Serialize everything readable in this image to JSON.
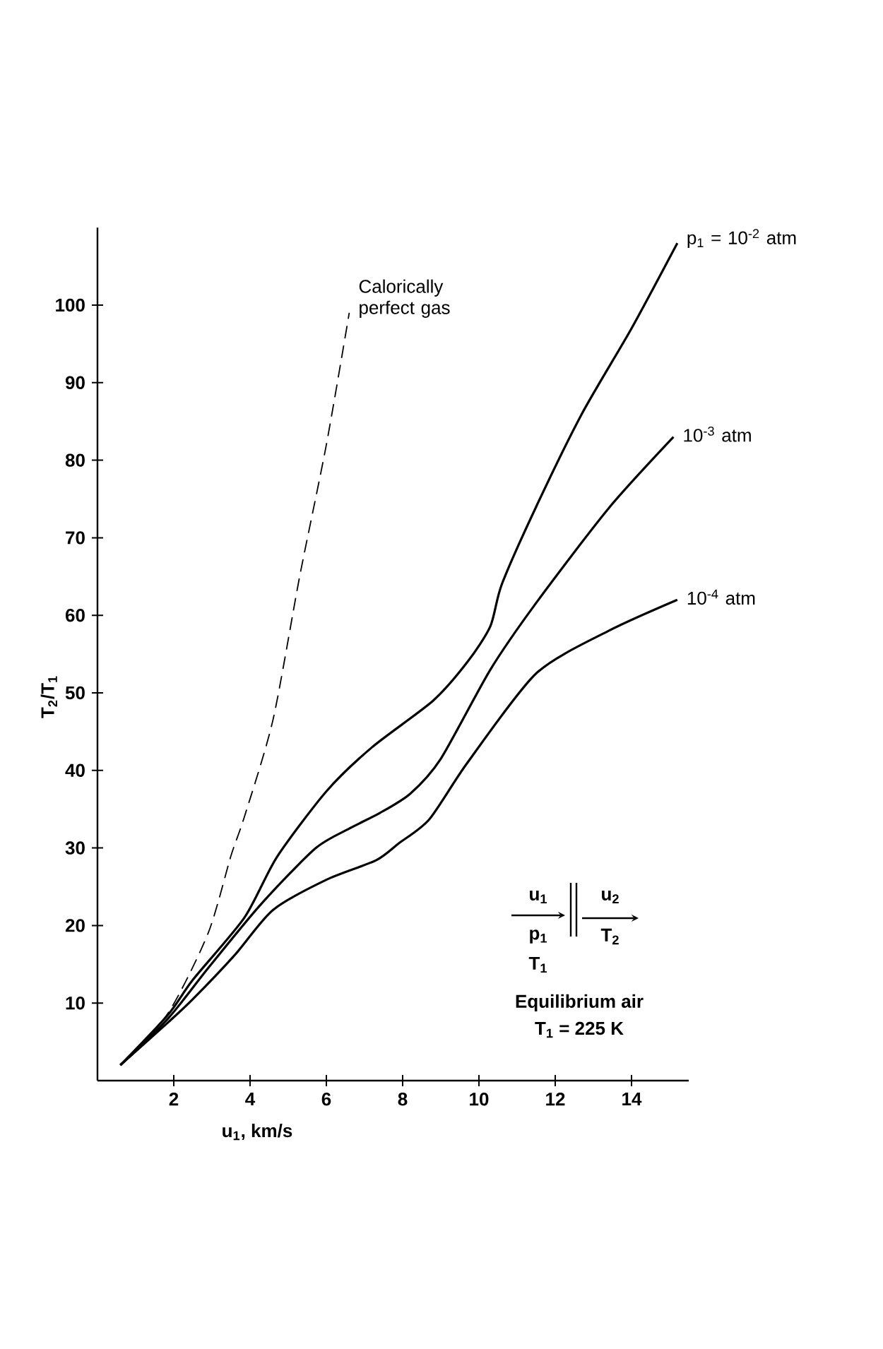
{
  "chart_data": {
    "type": "line",
    "xlabel": "u$_{1}$, km/s",
    "ylabel": "T$_{2}$/T$_{1}$",
    "xlim": [
      0,
      15.5
    ],
    "ylim": [
      0,
      110
    ],
    "xticks": [
      2,
      4,
      6,
      8,
      10,
      12,
      14
    ],
    "yticks": [
      10,
      20,
      30,
      40,
      50,
      60,
      70,
      80,
      90,
      100
    ],
    "series": [
      {
        "name": "Calorically perfect gas",
        "color": "#000000",
        "line_style": "dashed",
        "x": [
          0.6,
          1.85,
          2.9,
          3.5,
          3.85,
          4.6,
          5.3,
          6.0,
          6.6
        ],
        "values": [
          2,
          8.7,
          19,
          29,
          34,
          46.5,
          65,
          82,
          99
        ]
      },
      {
        "name": "p$_{1}$ = 10$^{-2}$ atm",
        "color": "#000000",
        "line_style": "solid",
        "x": [
          0.6,
          1.85,
          2.5,
          3.85,
          4.7,
          6.0,
          7.2,
          8.8,
          9.7,
          10.3,
          10.6,
          11.5,
          12.7,
          14.0,
          15.2
        ],
        "values": [
          2,
          8.5,
          13,
          21,
          28.8,
          37.3,
          43,
          49,
          54,
          58.6,
          64,
          74,
          86,
          97,
          108
        ]
      },
      {
        "name": "10$^{-3}$ atm",
        "color": "#000000",
        "line_style": "solid",
        "x": [
          0.6,
          1.85,
          2.9,
          4.26,
          5.7,
          6.6,
          7.4,
          8.2,
          9.0,
          10.3,
          11.5,
          13.4,
          15.1
        ],
        "values": [
          2,
          8,
          14.5,
          22.6,
          29.9,
          32.5,
          34.5,
          37,
          41.5,
          53,
          61.6,
          73.8,
          83
        ]
      },
      {
        "name": "10$^{-4}$ atm",
        "color": "#000000",
        "line_style": "solid",
        "x": [
          0.6,
          1.85,
          2.5,
          3.6,
          4.6,
          6.0,
          7.3,
          7.9,
          8.7,
          9.7,
          11.5,
          13.4,
          15.2
        ],
        "values": [
          2,
          7.5,
          10.5,
          16.2,
          22,
          25.9,
          28.4,
          30.6,
          33.7,
          41,
          52.5,
          58,
          62
        ]
      }
    ],
    "annotations": [
      "u$_{1}$",
      "p$_{1}$",
      "T$_{1}$",
      "u$_{2}$",
      "T$_{2}$",
      "Equilibrium air",
      "T$_{1}$ = 225 K"
    ]
  }
}
